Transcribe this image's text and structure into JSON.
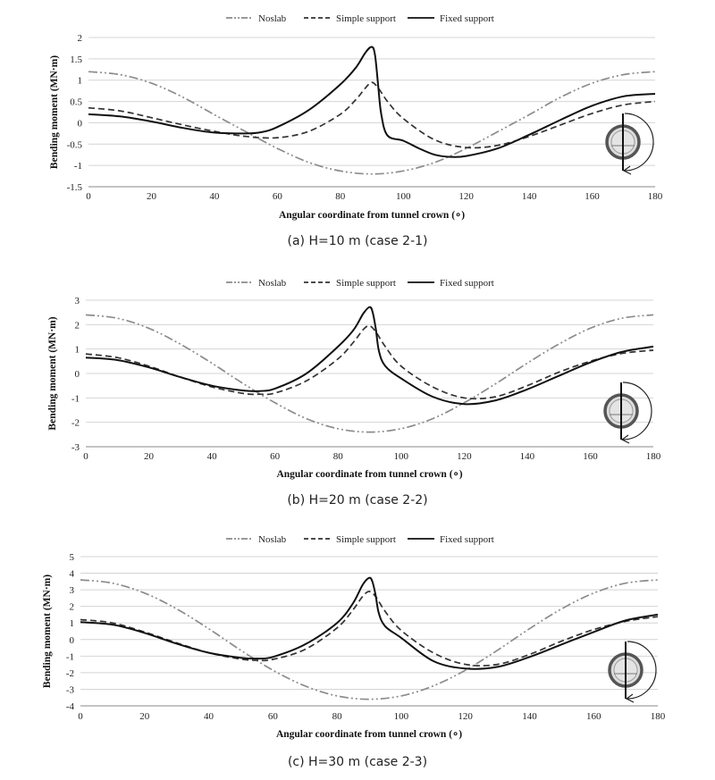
{
  "chart_data": [
    {
      "type": "line",
      "caption": "(a) H=10 m (case 2-1)",
      "xlabel": "Angular coordinate from tunnel crown (∘)",
      "ylabel": "Bending moment (MN·m)",
      "xlim": [
        0,
        180
      ],
      "ylim": [
        -1.5,
        2
      ],
      "x_ticks": [
        "0",
        "20",
        "40",
        "60",
        "80",
        "100",
        "120",
        "140",
        "160",
        "180"
      ],
      "y_ticks": [
        "-1.5",
        "-1",
        "-0.5",
        "0",
        "0.5",
        "1",
        "1.5",
        "2"
      ],
      "grid": "horizontal",
      "legend": "top",
      "series": [
        {
          "name": "Noslab",
          "color": "#8c8c8c",
          "style": "dash-dot-dot",
          "x": [
            0,
            10,
            20,
            30,
            40,
            50,
            60,
            70,
            80,
            90,
            100,
            110,
            120,
            130,
            140,
            150,
            160,
            170,
            180
          ],
          "values": [
            1.2,
            1.13,
            0.93,
            0.6,
            0.19,
            -0.21,
            -0.6,
            -0.93,
            -1.13,
            -1.2,
            -1.13,
            -0.93,
            -0.6,
            -0.21,
            0.19,
            0.6,
            0.93,
            1.13,
            1.2
          ]
        },
        {
          "name": "Simple support",
          "color": "#333333",
          "style": "dashed",
          "x": [
            0,
            10,
            20,
            30,
            40,
            50,
            60,
            70,
            80,
            85,
            88,
            90,
            92,
            95,
            100,
            110,
            120,
            130,
            140,
            150,
            160,
            170,
            180
          ],
          "values": [
            0.35,
            0.28,
            0.12,
            -0.05,
            -0.2,
            -0.32,
            -0.35,
            -0.2,
            0.2,
            0.55,
            0.82,
            0.95,
            0.82,
            0.5,
            0.1,
            -0.4,
            -0.58,
            -0.53,
            -0.32,
            -0.05,
            0.22,
            0.42,
            0.5
          ]
        },
        {
          "name": "Fixed support",
          "color": "#111111",
          "style": "solid",
          "x": [
            0,
            10,
            20,
            30,
            40,
            50,
            55,
            60,
            70,
            80,
            85,
            88,
            90,
            91,
            92,
            93,
            95,
            100,
            105,
            110,
            115,
            120,
            130,
            140,
            150,
            160,
            170,
            180
          ],
          "values": [
            0.2,
            0.15,
            0.03,
            -0.12,
            -0.23,
            -0.25,
            -0.22,
            -0.1,
            0.3,
            0.9,
            1.3,
            1.65,
            1.78,
            1.6,
            0.9,
            0.2,
            -0.3,
            -0.42,
            -0.6,
            -0.75,
            -0.8,
            -0.78,
            -0.6,
            -0.28,
            0.07,
            0.4,
            0.62,
            0.68
          ]
        }
      ]
    },
    {
      "type": "line",
      "caption": "(b) H=20 m (case 2-2)",
      "xlabel": "Angular coordinate from tunnel crown (∘)",
      "ylabel": "Bending moment (MN·m)",
      "xlim": [
        0,
        180
      ],
      "ylim": [
        -3,
        3
      ],
      "x_ticks": [
        "0",
        "20",
        "40",
        "60",
        "80",
        "100",
        "120",
        "140",
        "160",
        "180"
      ],
      "y_ticks": [
        "-3",
        "-2",
        "-1",
        "0",
        "1",
        "2",
        "3"
      ],
      "grid": "horizontal",
      "legend": "top",
      "series": [
        {
          "name": "Noslab",
          "color": "#8c8c8c",
          "style": "dash-dot-dot",
          "x": [
            0,
            10,
            20,
            30,
            40,
            50,
            60,
            70,
            80,
            90,
            100,
            110,
            120,
            130,
            140,
            150,
            160,
            170,
            180
          ],
          "values": [
            2.4,
            2.26,
            1.85,
            1.2,
            0.42,
            -0.42,
            -1.2,
            -1.85,
            -2.26,
            -2.4,
            -2.26,
            -1.85,
            -1.2,
            -0.42,
            0.42,
            1.2,
            1.85,
            2.26,
            2.4
          ]
        },
        {
          "name": "Simple support",
          "color": "#333333",
          "style": "dashed",
          "x": [
            0,
            10,
            20,
            30,
            40,
            50,
            55,
            60,
            70,
            80,
            85,
            88,
            90,
            92,
            95,
            100,
            110,
            120,
            130,
            140,
            150,
            160,
            170,
            180
          ],
          "values": [
            0.8,
            0.65,
            0.3,
            -0.15,
            -0.55,
            -0.82,
            -0.85,
            -0.8,
            -0.3,
            0.6,
            1.3,
            1.8,
            1.95,
            1.7,
            1.1,
            0.3,
            -0.55,
            -1.0,
            -0.95,
            -0.5,
            0.05,
            0.5,
            0.82,
            0.95
          ]
        },
        {
          "name": "Fixed support",
          "color": "#111111",
          "style": "solid",
          "x": [
            0,
            10,
            20,
            30,
            40,
            50,
            55,
            60,
            70,
            80,
            85,
            88,
            90,
            91,
            92,
            93,
            95,
            100,
            110,
            120,
            130,
            140,
            150,
            160,
            170,
            180
          ],
          "values": [
            0.65,
            0.55,
            0.25,
            -0.15,
            -0.5,
            -0.7,
            -0.72,
            -0.62,
            0.0,
            1.1,
            1.8,
            2.45,
            2.72,
            2.5,
            1.8,
            0.9,
            0.3,
            -0.2,
            -0.95,
            -1.25,
            -1.1,
            -0.65,
            -0.1,
            0.45,
            0.88,
            1.1
          ]
        }
      ]
    },
    {
      "type": "line",
      "caption": "(c) H=30 m (case 2-3)",
      "xlabel": "Angular coordinate from tunnel crown (∘)",
      "ylabel": "Bending moment (MN·m)",
      "xlim": [
        0,
        180
      ],
      "ylim": [
        -4,
        5
      ],
      "x_ticks": [
        "0",
        "20",
        "40",
        "60",
        "80",
        "100",
        "120",
        "140",
        "160",
        "180"
      ],
      "y_ticks": [
        "-4",
        "-3",
        "-2",
        "-1",
        "0",
        "1",
        "2",
        "3",
        "4",
        "5"
      ],
      "grid": "horizontal",
      "legend": "top",
      "series": [
        {
          "name": "Noslab",
          "color": "#8c8c8c",
          "style": "dash-dot-dot",
          "x": [
            0,
            10,
            20,
            30,
            40,
            50,
            60,
            70,
            80,
            90,
            100,
            110,
            120,
            130,
            140,
            150,
            160,
            170,
            180
          ],
          "values": [
            3.6,
            3.4,
            2.8,
            1.85,
            0.65,
            -0.65,
            -1.85,
            -2.8,
            -3.4,
            -3.6,
            -3.4,
            -2.8,
            -1.85,
            -0.65,
            0.65,
            1.85,
            2.8,
            3.4,
            3.6
          ]
        },
        {
          "name": "Simple support",
          "color": "#333333",
          "style": "dashed",
          "x": [
            0,
            10,
            20,
            30,
            40,
            50,
            55,
            60,
            70,
            80,
            85,
            88,
            90,
            92,
            95,
            100,
            110,
            120,
            130,
            140,
            150,
            160,
            170,
            180
          ],
          "values": [
            1.2,
            1.0,
            0.45,
            -0.2,
            -0.8,
            -1.18,
            -1.25,
            -1.2,
            -0.6,
            0.7,
            1.8,
            2.6,
            2.9,
            2.6,
            1.7,
            0.55,
            -0.8,
            -1.5,
            -1.5,
            -0.9,
            -0.1,
            0.6,
            1.1,
            1.38
          ]
        },
        {
          "name": "Fixed support",
          "color": "#111111",
          "style": "solid",
          "x": [
            0,
            10,
            20,
            30,
            40,
            50,
            55,
            60,
            70,
            80,
            85,
            88,
            90,
            91,
            92,
            93,
            95,
            100,
            110,
            120,
            130,
            140,
            150,
            160,
            170,
            180
          ],
          "values": [
            1.05,
            0.9,
            0.4,
            -0.25,
            -0.8,
            -1.1,
            -1.15,
            -1.05,
            -0.3,
            1.0,
            2.2,
            3.3,
            3.72,
            3.5,
            2.7,
            1.6,
            0.8,
            0.1,
            -1.3,
            -1.75,
            -1.65,
            -1.05,
            -0.3,
            0.45,
            1.15,
            1.5
          ]
        }
      ]
    }
  ]
}
